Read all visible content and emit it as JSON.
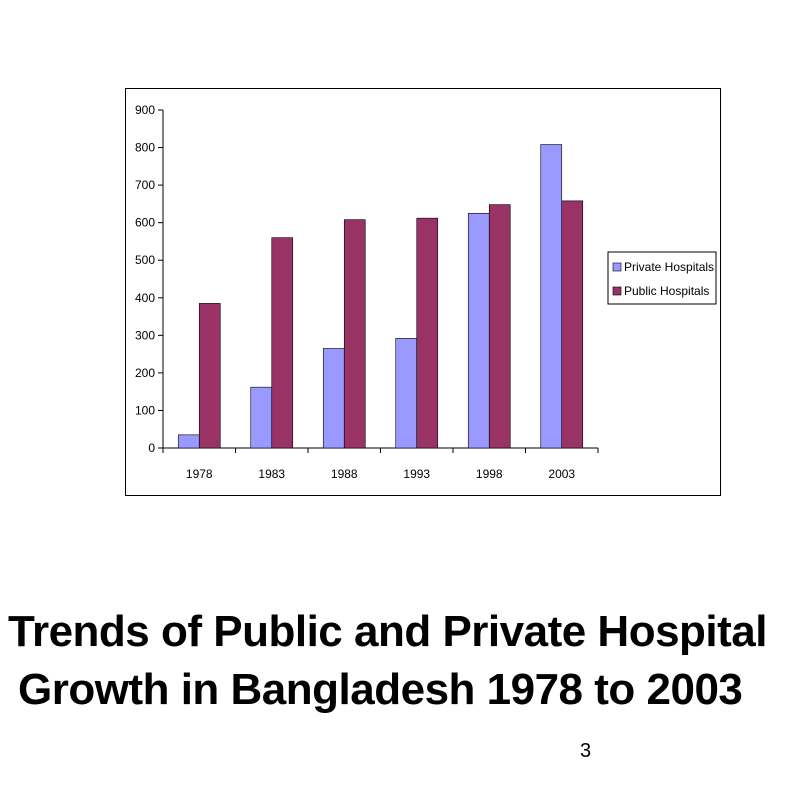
{
  "title": {
    "line1": "Trends of Public and Private Hospital",
    "line2": "Growth in Bangladesh 1978 to 2003"
  },
  "page_number": "3",
  "chart_data": {
    "type": "bar",
    "categories": [
      "1978",
      "1983",
      "1988",
      "1993",
      "1998",
      "2003"
    ],
    "series": [
      {
        "name": "Private Hospitals",
        "values": [
          35,
          162,
          265,
          292,
          625,
          808
        ],
        "color": "#9999ff"
      },
      {
        "name": "Public Hospitals",
        "values": [
          385,
          560,
          608,
          612,
          648,
          658
        ],
        "color": "#993366"
      }
    ],
    "yticks": [
      "0",
      "100",
      "200",
      "300",
      "400",
      "500",
      "600",
      "700",
      "800",
      "900"
    ],
    "ylim": [
      0,
      900
    ],
    "grid": false,
    "legend_position": "right"
  }
}
